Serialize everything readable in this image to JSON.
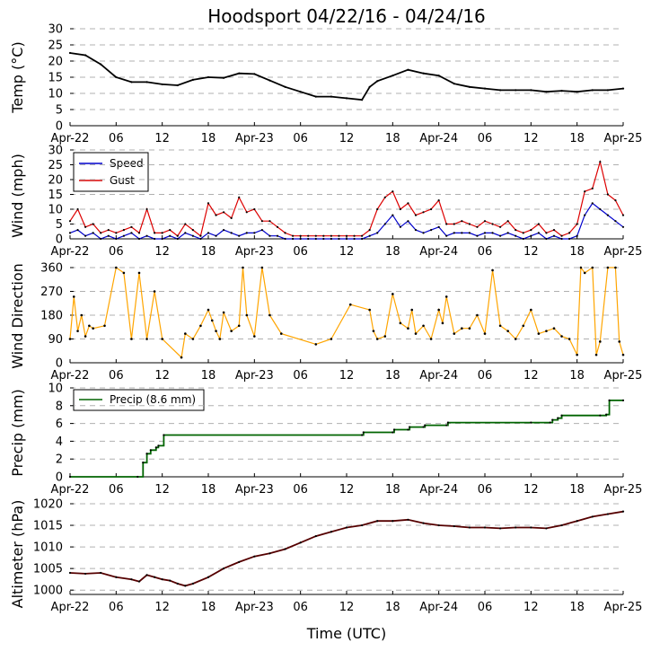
{
  "title": "Hoodsport 04/22/16 - 04/24/16",
  "xlabel": "Time (UTC)",
  "xtick_labels": [
    "Apr-22",
    "06",
    "12",
    "18",
    "Apr-23",
    "06",
    "12",
    "18",
    "Apr-24",
    "06",
    "12",
    "18",
    "Apr-25"
  ],
  "xtick_hours": [
    0,
    6,
    12,
    18,
    24,
    30,
    36,
    42,
    48,
    54,
    60,
    66,
    72
  ],
  "colors": {
    "temp": "#000000",
    "speed": "#0000cc",
    "gust": "#dd0000",
    "direction": "#ffa500",
    "precip": "#006400",
    "altimeter": "#550000",
    "marker": "#000000"
  },
  "chart_data": [
    {
      "id": "temp",
      "type": "line",
      "ylabel": "Temp (°C)",
      "ylim": [
        0,
        30
      ],
      "yticks": [
        0,
        5,
        10,
        15,
        20,
        25,
        30
      ],
      "ytick_labels": [
        "0",
        "5",
        "10",
        "15",
        "20",
        "25",
        "30"
      ],
      "series": [
        {
          "name": "Temp",
          "color": "#000000",
          "x": [
            0,
            2,
            4,
            6,
            8,
            10,
            12,
            14,
            16,
            18,
            20,
            22,
            24,
            26,
            28,
            30,
            32,
            34,
            36,
            38,
            39,
            40,
            42,
            44,
            46,
            48,
            50,
            52,
            54,
            56,
            58,
            60,
            62,
            64,
            66,
            68,
            70,
            72
          ],
          "y": [
            22.5,
            21.8,
            19,
            15,
            13.5,
            13.5,
            12.8,
            12.5,
            14.2,
            15,
            14.8,
            16.2,
            16,
            14,
            12,
            10.5,
            9,
            9,
            8.5,
            8,
            12,
            13.8,
            15.5,
            17.3,
            16.2,
            15.5,
            13,
            12,
            11.5,
            11,
            11,
            11,
            10.5,
            10.8,
            10.5,
            11,
            11,
            11.5
          ]
        }
      ]
    },
    {
      "id": "wind",
      "type": "line",
      "ylabel": "Wind (mph)",
      "ylim": [
        0,
        30
      ],
      "yticks": [
        0,
        5,
        10,
        15,
        20,
        25,
        30
      ],
      "ytick_labels": [
        "0",
        "5",
        "10",
        "15",
        "20",
        "25",
        "30"
      ],
      "legend": {
        "position": "top-left"
      },
      "series": [
        {
          "name": "Speed",
          "color": "#0000cc",
          "x": [
            0,
            1,
            2,
            3,
            4,
            5,
            6,
            7,
            8,
            9,
            10,
            11,
            12,
            13,
            14,
            15,
            16,
            17,
            18,
            19,
            20,
            21,
            22,
            23,
            24,
            25,
            26,
            27,
            28,
            29,
            30,
            31,
            32,
            33,
            34,
            35,
            36,
            37,
            38,
            39,
            40,
            41,
            42,
            43,
            44,
            45,
            46,
            47,
            48,
            49,
            50,
            51,
            52,
            53,
            54,
            55,
            56,
            57,
            58,
            59,
            60,
            61,
            62,
            63,
            64,
            65,
            66,
            67,
            68,
            69,
            70,
            71,
            72
          ],
          "y": [
            2,
            3,
            1,
            2,
            0,
            1,
            0,
            1,
            2,
            0,
            1,
            0,
            0,
            1,
            0,
            2,
            1,
            0,
            2,
            1,
            3,
            2,
            1,
            2,
            2,
            3,
            1,
            1,
            0,
            0,
            0,
            0,
            0,
            0,
            0,
            0,
            0,
            0,
            0,
            1,
            2,
            5,
            8,
            4,
            6,
            3,
            2,
            3,
            4,
            1,
            2,
            2,
            2,
            1,
            2,
            2,
            1,
            2,
            1,
            0,
            1,
            2,
            0,
            1,
            0,
            0,
            1,
            8,
            12,
            10,
            8,
            6,
            4
          ]
        },
        {
          "name": "Gust",
          "color": "#dd0000",
          "x": [
            0,
            1,
            2,
            3,
            4,
            5,
            6,
            7,
            8,
            9,
            10,
            11,
            12,
            13,
            14,
            15,
            16,
            17,
            18,
            19,
            20,
            21,
            22,
            23,
            24,
            25,
            26,
            27,
            28,
            29,
            30,
            31,
            32,
            33,
            34,
            35,
            36,
            37,
            38,
            39,
            40,
            41,
            42,
            43,
            44,
            45,
            46,
            47,
            48,
            49,
            50,
            51,
            52,
            53,
            54,
            55,
            56,
            57,
            58,
            59,
            60,
            61,
            62,
            63,
            64,
            65,
            66,
            67,
            68,
            69,
            70,
            71,
            72
          ],
          "y": [
            6,
            10,
            4,
            5,
            2,
            3,
            2,
            3,
            4,
            2,
            10,
            2,
            2,
            3,
            1,
            5,
            3,
            1,
            12,
            8,
            9,
            7,
            14,
            9,
            10,
            6,
            6,
            4,
            2,
            1,
            1,
            1,
            1,
            1,
            1,
            1,
            1,
            1,
            1,
            3,
            10,
            14,
            16,
            10,
            12,
            8,
            9,
            10,
            13,
            5,
            5,
            6,
            5,
            4,
            6,
            5,
            4,
            6,
            3,
            2,
            3,
            5,
            2,
            3,
            1,
            2,
            5,
            16,
            17,
            26,
            15,
            13,
            8
          ]
        }
      ]
    },
    {
      "id": "direction",
      "type": "scatter",
      "ylabel": "Wind Direction",
      "ylim": [
        0,
        360
      ],
      "yticks": [
        0,
        90,
        180,
        270,
        360
      ],
      "ytick_labels": [
        "0",
        "90",
        "180",
        "270",
        "360"
      ],
      "series": [
        {
          "name": "Direction",
          "color": "#ffa500",
          "x": [
            0,
            0.5,
            1,
            1.5,
            2,
            2.5,
            3,
            4.5,
            6,
            7,
            8,
            9,
            10,
            11,
            12,
            14.5,
            15,
            16,
            17,
            18,
            18.5,
            19,
            19.5,
            20,
            21,
            22,
            22.5,
            23,
            24,
            25,
            26,
            27.5,
            32,
            34,
            36.5,
            39,
            39.5,
            40,
            41,
            42,
            43,
            44,
            44.5,
            45,
            46,
            47,
            48,
            48.5,
            49,
            50,
            51,
            52,
            53,
            54,
            55,
            56,
            57,
            58,
            59,
            60,
            61,
            62,
            63,
            64,
            65,
            66,
            66.5,
            67,
            68,
            68.5,
            69,
            70,
            71,
            71.5,
            72
          ],
          "y": [
            90,
            250,
            120,
            180,
            100,
            140,
            130,
            140,
            360,
            340,
            90,
            340,
            90,
            270,
            90,
            20,
            110,
            90,
            140,
            200,
            160,
            120,
            90,
            190,
            120,
            140,
            360,
            180,
            100,
            360,
            180,
            110,
            70,
            90,
            220,
            200,
            120,
            90,
            100,
            260,
            150,
            130,
            200,
            110,
            140,
            90,
            200,
            150,
            250,
            110,
            130,
            130,
            180,
            110,
            350,
            140,
            120,
            90,
            140,
            200,
            110,
            120,
            130,
            100,
            90,
            30,
            360,
            340,
            360,
            30,
            80,
            360,
            360,
            80,
            30
          ]
        }
      ]
    },
    {
      "id": "precip",
      "type": "line",
      "ylabel": "Precip (mm)",
      "ylim": [
        0,
        10
      ],
      "yticks": [
        0,
        2,
        4,
        6,
        8,
        10
      ],
      "ytick_labels": [
        "0",
        "2",
        "4",
        "6",
        "8",
        "10"
      ],
      "legend": {
        "position": "top-left"
      },
      "series": [
        {
          "name": "Precip (8.6 mm)",
          "color": "#006400",
          "x": [
            0,
            8.8,
            9.5,
            10,
            10.5,
            11.2,
            11.5,
            12.2,
            38,
            38.2,
            42,
            42.2,
            44,
            44.2,
            46,
            46.2,
            49,
            49.2,
            60,
            62.5,
            62.8,
            63.5,
            64,
            69,
            69.8,
            70.2,
            72
          ],
          "y": [
            0,
            0,
            1.6,
            2.6,
            3,
            3.3,
            3.5,
            4.7,
            4.7,
            5.0,
            5.0,
            5.3,
            5.3,
            5.6,
            5.6,
            5.8,
            5.8,
            6.1,
            6.1,
            6.1,
            6.4,
            6.6,
            6.9,
            6.9,
            7.0,
            8.6,
            8.6
          ]
        }
      ]
    },
    {
      "id": "altimeter",
      "type": "line",
      "ylabel": "Altimeter (hPa)",
      "ylim": [
        999,
        1020
      ],
      "yticks": [
        1000,
        1005,
        1010,
        1015,
        1020
      ],
      "ytick_labels": [
        "1000",
        "1005",
        "1010",
        "1015",
        "1020"
      ],
      "series": [
        {
          "name": "Altimeter",
          "color": "#550000",
          "x": [
            0,
            2,
            4,
            6,
            8,
            9,
            10,
            11,
            12,
            13,
            14,
            15,
            16,
            18,
            20,
            22,
            24,
            26,
            28,
            30,
            32,
            34,
            36,
            38,
            40,
            42,
            44,
            46,
            48,
            50,
            52,
            54,
            56,
            58,
            60,
            62,
            64,
            66,
            68,
            70,
            72
          ],
          "y": [
            1004,
            1003.8,
            1004,
            1003,
            1002.5,
            1002,
            1003.5,
            1003,
            1002.5,
            1002.2,
            1001.5,
            1001,
            1001.5,
            1003,
            1005,
            1006.5,
            1007.8,
            1008.5,
            1009.5,
            1011,
            1012.5,
            1013.5,
            1014.5,
            1015,
            1016,
            1016,
            1016.3,
            1015.5,
            1015,
            1014.8,
            1014.5,
            1014.5,
            1014.3,
            1014.5,
            1014.5,
            1014.3,
            1015,
            1016,
            1017,
            1017.6,
            1018.2
          ]
        }
      ]
    }
  ]
}
